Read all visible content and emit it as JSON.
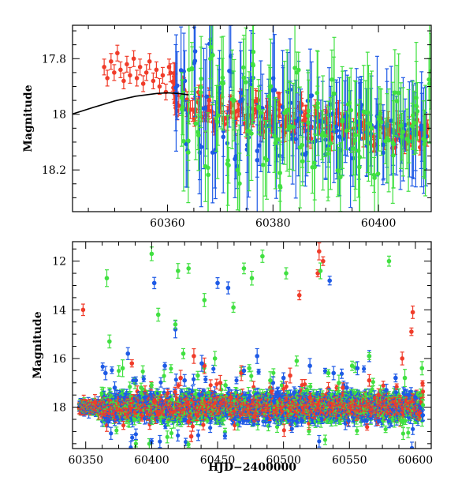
{
  "chart_data": [
    {
      "type": "scatter",
      "title": "",
      "xlabel": "",
      "ylabel": "Magnitude",
      "xlim": [
        60342,
        60410
      ],
      "ylim": [
        18.35,
        17.68
      ],
      "y_inverted": true,
      "x_ticks": [
        60360,
        60380,
        60400
      ],
      "x_tick_labels": [
        "60360",
        "60380",
        "60400"
      ],
      "y_ticks": [
        17.8,
        18.0,
        18.2
      ],
      "y_tick_labels": [
        "17.8",
        "18",
        "18.2"
      ],
      "grid": false,
      "legend": "none",
      "colors": {
        "red": "#f03c2a",
        "blue": "#1e5ae6",
        "green": "#41e041",
        "model": "#000000"
      },
      "model_curve": {
        "color": "#000000",
        "x": [
          60342,
          60346,
          60350,
          60354,
          60358,
          60360,
          60362,
          60364
        ],
        "y": [
          17.999,
          17.975,
          17.952,
          17.935,
          17.925,
          17.923,
          17.925,
          17.93
        ]
      },
      "series": [
        {
          "color": "#f03c2a",
          "x": [
            60348.0,
            60348.6,
            60349.3,
            60349.9,
            60350.5,
            60351.1,
            60351.7,
            60352.3,
            60352.9,
            60353.6,
            60354.2,
            60354.8,
            60355.4,
            60356.0,
            60356.6,
            60357.3,
            60357.9,
            60358.5,
            60359.1,
            60359.7,
            60360.3,
            60361.0,
            60361.5,
            60362.0,
            60363.0,
            60364.0,
            60365.0,
            60366.0,
            60367.0,
            60368.0,
            60369.0,
            60370.0,
            60371.0,
            60372.0,
            60373.0,
            60374.0,
            60375.0,
            60376.0,
            60377.0,
            60378.0,
            60379.0,
            60380.0,
            60381.0,
            60382.0,
            60383.0,
            60384.0,
            60385.0,
            60386.0,
            60387.0,
            60388.0,
            60389.0,
            60390.0,
            60391.0,
            60392.0,
            60393.0,
            60394.0,
            60395.0,
            60396.0,
            60397.0,
            60398.0,
            60399.0,
            60400.0,
            60401.0,
            60402.0,
            60403.0,
            60404.0,
            60405.0,
            60406.0,
            60407.0,
            60408.0,
            60409.0
          ],
          "y": [
            17.83,
            17.87,
            17.81,
            17.85,
            17.78,
            17.84,
            17.88,
            17.82,
            17.86,
            17.8,
            17.87,
            17.83,
            17.89,
            17.85,
            17.81,
            17.88,
            17.84,
            17.9,
            17.86,
            17.92,
            17.83,
            17.88,
            17.93,
            17.96,
            17.91,
            17.97,
            17.99,
            17.94,
            18.0,
            17.96,
            18.02,
            17.97,
            18.03,
            17.98,
            18.01,
            17.96,
            18.03,
            18.0,
            17.97,
            18.04,
            18.0,
            18.02,
            17.98,
            18.04,
            18.01,
            18.05,
            17.99,
            18.03,
            18.06,
            18.0,
            18.04,
            18.02,
            18.07,
            18.01,
            18.05,
            18.03,
            18.08,
            18.02,
            18.06,
            18.04,
            18.09,
            18.03,
            18.07,
            18.05,
            18.1,
            18.04,
            18.08,
            18.06,
            18.03,
            18.09,
            18.05
          ]
        },
        {
          "color": "#1e5ae6",
          "x": [
            60362.0,
            60363.0,
            60364.0,
            60365.0,
            60366.0,
            60367.0,
            60368.0,
            60369.0,
            60370.0,
            60371.0,
            60372.0,
            60373.0,
            60374.0,
            60375.0,
            60376.0,
            60377.0,
            60378.0,
            60379.0,
            60380.0,
            60381.0,
            60382.0,
            60383.0,
            60384.0,
            60385.0,
            60386.0,
            60387.0,
            60388.0,
            60389.0,
            60390.0,
            60391.0,
            60392.0,
            60393.0,
            60394.0,
            60395.0,
            60396.0,
            60397.0,
            60398.0,
            60399.0,
            60400.0,
            60401.0,
            60402.0,
            60403.0,
            60404.0,
            60405.0,
            60406.0,
            60407.0,
            60408.0,
            60409.0
          ],
          "y": [
            17.9,
            17.86,
            18.1,
            17.8,
            18.12,
            17.95,
            17.76,
            18.15,
            17.92,
            18.08,
            17.82,
            18.18,
            17.95,
            18.1,
            17.88,
            18.14,
            17.98,
            18.05,
            17.9,
            18.12,
            18.0,
            17.94,
            18.1,
            18.02,
            18.15,
            17.96,
            18.08,
            18.03,
            18.12,
            17.98,
            18.06,
            18.1,
            18.01,
            18.14,
            18.04,
            17.97,
            18.09,
            18.06,
            18.02,
            18.11,
            18.04,
            18.08,
            18.1,
            18.05,
            18.07,
            18.09,
            18.04,
            18.08
          ]
        },
        {
          "color": "#41e041",
          "x": [
            60362.5,
            60363.5,
            60364.5,
            60365.5,
            60366.5,
            60367.5,
            60368.5,
            60369.5,
            60370.5,
            60371.5,
            60372.5,
            60373.5,
            60374.5,
            60375.5,
            60376.5,
            60377.5,
            60378.5,
            60379.5,
            60380.5,
            60381.5,
            60382.5,
            60383.5,
            60384.5,
            60385.5,
            60386.5,
            60387.5,
            60388.5,
            60389.5,
            60390.5,
            60391.5,
            60392.5,
            60393.5,
            60394.5,
            60395.5,
            60396.5,
            60397.5,
            60398.5,
            60399.5,
            60400.5,
            60401.5,
            60402.5,
            60403.5,
            60404.5,
            60405.5,
            60406.5,
            60407.5,
            60408.5,
            60409.5
          ],
          "y": [
            17.96,
            18.12,
            17.82,
            18.05,
            17.9,
            18.2,
            17.78,
            18.02,
            17.88,
            18.16,
            17.94,
            18.22,
            17.86,
            18.08,
            17.8,
            18.0,
            18.18,
            17.92,
            18.1,
            18.24,
            17.98,
            18.06,
            17.84,
            18.14,
            18.0,
            18.19,
            17.95,
            18.07,
            18.12,
            17.9,
            18.2,
            18.03,
            17.97,
            18.1,
            18.16,
            17.99,
            18.05,
            18.21,
            18.02,
            18.09,
            18.13,
            17.94,
            18.06,
            18.11,
            18.02,
            17.96,
            18.08,
            17.86
          ]
        }
      ]
    },
    {
      "type": "scatter",
      "title": "",
      "xlabel": "HJD−2400000",
      "ylabel": "Magnitude",
      "xlim": [
        60340,
        60612
      ],
      "ylim": [
        19.7,
        11.2
      ],
      "y_inverted": true,
      "x_ticks": [
        60350,
        60400,
        60450,
        60500,
        60550,
        60600
      ],
      "x_tick_labels": [
        "60350",
        "60400",
        "60450",
        "60500",
        "60550",
        "60600"
      ],
      "y_ticks": [
        12,
        14,
        16,
        18
      ],
      "y_tick_labels": [
        "12",
        "14",
        "16",
        "18"
      ],
      "grid": false,
      "legend": "none",
      "colors": {
        "red": "#f03c2a",
        "blue": "#1e5ae6",
        "green": "#41e041"
      },
      "baseline": {
        "x_range": [
          60345,
          60606
        ],
        "level": 18.0
      },
      "series": [
        {
          "color": "#f03c2a",
          "x": [
            60348,
            60357,
            60385,
            60395,
            60405,
            60422,
            60428,
            60430,
            60432,
            60440,
            60452,
            60460,
            60468,
            60478,
            60490,
            60505,
            60512,
            60520,
            60526,
            60527,
            60530,
            60545,
            60565,
            60572,
            60590,
            60597,
            60598
          ],
          "y": [
            14.0,
            17.8,
            16.2,
            17.4,
            18.3,
            16.8,
            18.6,
            19.2,
            15.9,
            16.3,
            17.0,
            17.6,
            16.6,
            18.4,
            17.2,
            16.7,
            13.4,
            17.6,
            12.5,
            11.6,
            12.0,
            17.2,
            16.9,
            17.5,
            16.0,
            14.9,
            14.1
          ]
        },
        {
          "color": "#1e5ae6",
          "x": [
            60365,
            60372,
            60382,
            60388,
            60395,
            60402,
            60410,
            60418,
            60425,
            60438,
            60450,
            60458,
            60470,
            60480,
            60492,
            60500,
            60508,
            60520,
            60535,
            60538,
            60548,
            60556,
            60565,
            60578,
            60585,
            60595,
            60600
          ],
          "y": [
            16.6,
            17.2,
            15.8,
            16.9,
            17.6,
            12.9,
            16.3,
            14.8,
            16.9,
            16.2,
            12.9,
            13.1,
            16.5,
            15.9,
            17.0,
            16.8,
            17.4,
            16.3,
            12.8,
            16.6,
            17.2,
            16.4,
            15.9,
            17.3,
            16.8,
            17.5,
            17.6
          ]
        },
        {
          "color": "#41e041",
          "x": [
            60366,
            60368,
            60378,
            60392,
            60400,
            60405,
            60418,
            60420,
            60424,
            60428,
            60435,
            60440,
            60448,
            60456,
            60462,
            60470,
            60474,
            60476,
            60484,
            60490,
            60502,
            60510,
            60518,
            60528,
            60534,
            60542,
            60552,
            60565,
            60580,
            60592,
            60605
          ],
          "y": [
            12.7,
            15.3,
            16.4,
            17.2,
            11.7,
            14.2,
            14.6,
            12.4,
            15.8,
            12.3,
            16.7,
            13.6,
            16.0,
            17.1,
            13.9,
            12.3,
            16.4,
            12.7,
            11.8,
            16.9,
            12.5,
            16.1,
            17.3,
            12.4,
            16.6,
            17.0,
            16.3,
            15.9,
            12.0,
            16.8,
            16.4
          ]
        }
      ]
    }
  ]
}
